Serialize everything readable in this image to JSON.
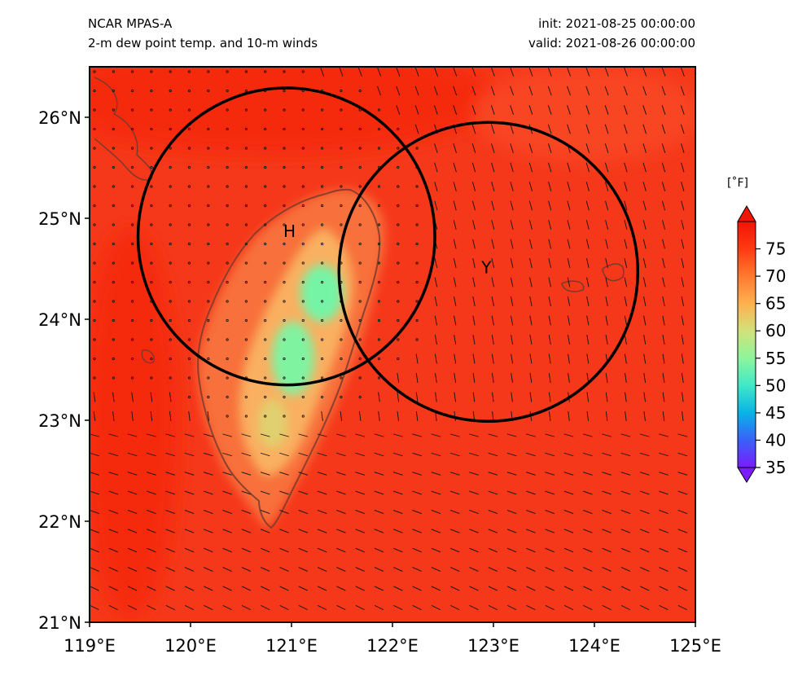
{
  "header": {
    "model": "NCAR MPAS-A",
    "subtitle": "2-m dew point temp. and 10-m winds",
    "init": "init: 2021-08-25 00:00:00",
    "valid": "valid: 2021-08-26 00:00:00"
  },
  "map": {
    "lon_range": [
      119,
      125
    ],
    "lat_range": [
      21,
      26.5
    ],
    "lon_ticks": [
      "119°E",
      "120°E",
      "121°E",
      "122°E",
      "123°E",
      "124°E",
      "125°E"
    ],
    "lat_ticks": [
      "21°N",
      "22°N",
      "23°N",
      "24°N",
      "25°N",
      "26°N"
    ],
    "field_colors": {
      "ocean": "#f5381a",
      "north_sea": "#f52a10",
      "mountain_mid": "#f9b060",
      "mountain_core": "#76f4a5",
      "coastline": "#7a3b2a"
    },
    "circles": [
      {
        "name": "circle-h",
        "center_lon": 120.95,
        "center_lat": 24.82,
        "radius_deg": 1.47,
        "color": "#000000"
      },
      {
        "name": "circle-y",
        "center_lon": 122.95,
        "center_lat": 24.47,
        "radius_deg": 1.48,
        "color": "#000000"
      }
    ],
    "markers": [
      {
        "label": "H",
        "lon": 120.98,
        "lat": 24.86
      },
      {
        "label": "Y",
        "lon": 122.93,
        "lat": 24.5
      }
    ]
  },
  "colorbar": {
    "unit": "[˚F]",
    "ticks": [
      "35",
      "40",
      "45",
      "50",
      "55",
      "60",
      "65",
      "70",
      "75"
    ],
    "range": [
      35,
      80
    ],
    "colors": [
      "#7a1cff",
      "#3a60f8",
      "#08b3e6",
      "#40e8c8",
      "#8df59c",
      "#d2e27a",
      "#ffb050",
      "#ff7a30",
      "#ff3a12",
      "#f01505"
    ]
  }
}
